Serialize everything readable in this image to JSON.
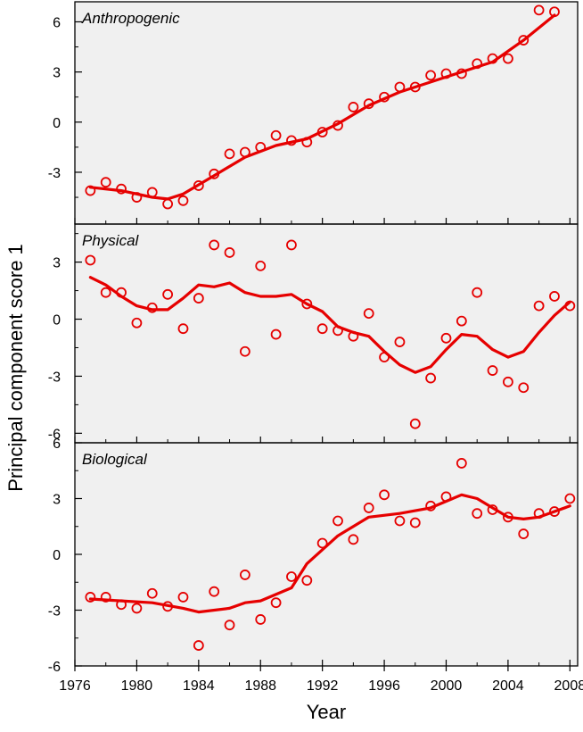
{
  "figure": {
    "ylabel": "Principal component score 1",
    "xlabel": "Year",
    "x_range": [
      1976,
      2008.5
    ],
    "x_ticks": [
      1976,
      1980,
      1984,
      1988,
      1992,
      1996,
      2000,
      2004,
      2008
    ],
    "series_color": "#e60000",
    "plot_background": "#f0f0f0",
    "grid": false
  },
  "chart_data": [
    {
      "type": "scatter",
      "title": "Anthropogenic",
      "ylim": [
        -6.1,
        7.2
      ],
      "y_ticks": [
        -3,
        0,
        3,
        6
      ],
      "points": [
        {
          "x": 1977,
          "y": -4.1
        },
        {
          "x": 1978,
          "y": -3.6
        },
        {
          "x": 1979,
          "y": -4.0
        },
        {
          "x": 1980,
          "y": -4.5
        },
        {
          "x": 1981,
          "y": -4.2
        },
        {
          "x": 1982,
          "y": -4.9
        },
        {
          "x": 1983,
          "y": -4.7
        },
        {
          "x": 1984,
          "y": -3.8
        },
        {
          "x": 1985,
          "y": -3.1
        },
        {
          "x": 1986,
          "y": -1.9
        },
        {
          "x": 1987,
          "y": -1.8
        },
        {
          "x": 1988,
          "y": -1.5
        },
        {
          "x": 1989,
          "y": -0.8
        },
        {
          "x": 1990,
          "y": -1.1
        },
        {
          "x": 1991,
          "y": -1.2
        },
        {
          "x": 1992,
          "y": -0.6
        },
        {
          "x": 1993,
          "y": -0.2
        },
        {
          "x": 1994,
          "y": 0.9
        },
        {
          "x": 1995,
          "y": 1.1
        },
        {
          "x": 1996,
          "y": 1.5
        },
        {
          "x": 1997,
          "y": 2.1
        },
        {
          "x": 1998,
          "y": 2.1
        },
        {
          "x": 1999,
          "y": 2.8
        },
        {
          "x": 2000,
          "y": 2.9
        },
        {
          "x": 2001,
          "y": 2.9
        },
        {
          "x": 2002,
          "y": 3.5
        },
        {
          "x": 2003,
          "y": 3.8
        },
        {
          "x": 2004,
          "y": 3.8
        },
        {
          "x": 2005,
          "y": 4.9
        },
        {
          "x": 2006,
          "y": 6.7
        },
        {
          "x": 2007,
          "y": 6.6
        }
      ],
      "trend": [
        {
          "x": 1977,
          "y": -3.9
        },
        {
          "x": 1979,
          "y": -4.1
        },
        {
          "x": 1981,
          "y": -4.5
        },
        {
          "x": 1982,
          "y": -4.6
        },
        {
          "x": 1983,
          "y": -4.3
        },
        {
          "x": 1985,
          "y": -3.2
        },
        {
          "x": 1987,
          "y": -2.1
        },
        {
          "x": 1989,
          "y": -1.4
        },
        {
          "x": 1991,
          "y": -1.0
        },
        {
          "x": 1993,
          "y": -0.1
        },
        {
          "x": 1995,
          "y": 1.0
        },
        {
          "x": 1997,
          "y": 1.8
        },
        {
          "x": 1999,
          "y": 2.4
        },
        {
          "x": 2001,
          "y": 3.0
        },
        {
          "x": 2003,
          "y": 3.6
        },
        {
          "x": 2005,
          "y": 4.9
        },
        {
          "x": 2007,
          "y": 6.4
        }
      ]
    },
    {
      "type": "scatter",
      "title": "Physical",
      "ylim": [
        -6.5,
        5.0
      ],
      "y_ticks": [
        -6,
        -3,
        0,
        3
      ],
      "points": [
        {
          "x": 1977,
          "y": 3.1
        },
        {
          "x": 1978,
          "y": 1.4
        },
        {
          "x": 1979,
          "y": 1.4
        },
        {
          "x": 1980,
          "y": -0.2
        },
        {
          "x": 1981,
          "y": 0.6
        },
        {
          "x": 1982,
          "y": 1.3
        },
        {
          "x": 1983,
          "y": -0.5
        },
        {
          "x": 1984,
          "y": 1.1
        },
        {
          "x": 1985,
          "y": 3.9
        },
        {
          "x": 1986,
          "y": 3.5
        },
        {
          "x": 1987,
          "y": -1.7
        },
        {
          "x": 1988,
          "y": 2.8
        },
        {
          "x": 1989,
          "y": -0.8
        },
        {
          "x": 1990,
          "y": 3.9
        },
        {
          "x": 1991,
          "y": 0.8
        },
        {
          "x": 1992,
          "y": -0.5
        },
        {
          "x": 1993,
          "y": -0.6
        },
        {
          "x": 1994,
          "y": -0.9
        },
        {
          "x": 1995,
          "y": 0.3
        },
        {
          "x": 1996,
          "y": -2.0
        },
        {
          "x": 1997,
          "y": -1.2
        },
        {
          "x": 1998,
          "y": -5.5
        },
        {
          "x": 1999,
          "y": -3.1
        },
        {
          "x": 2000,
          "y": -1.0
        },
        {
          "x": 2001,
          "y": -0.1
        },
        {
          "x": 2002,
          "y": 1.4
        },
        {
          "x": 2003,
          "y": -2.7
        },
        {
          "x": 2004,
          "y": -3.3
        },
        {
          "x": 2005,
          "y": -3.6
        },
        {
          "x": 2006,
          "y": 0.7
        },
        {
          "x": 2007,
          "y": 1.2
        },
        {
          "x": 2008,
          "y": 0.7
        }
      ],
      "trend": [
        {
          "x": 1977,
          "y": 2.2
        },
        {
          "x": 1978,
          "y": 1.8
        },
        {
          "x": 1979,
          "y": 1.2
        },
        {
          "x": 1980,
          "y": 0.7
        },
        {
          "x": 1981,
          "y": 0.5
        },
        {
          "x": 1982,
          "y": 0.5
        },
        {
          "x": 1983,
          "y": 1.1
        },
        {
          "x": 1984,
          "y": 1.8
        },
        {
          "x": 1985,
          "y": 1.7
        },
        {
          "x": 1986,
          "y": 1.9
        },
        {
          "x": 1987,
          "y": 1.4
        },
        {
          "x": 1988,
          "y": 1.2
        },
        {
          "x": 1989,
          "y": 1.2
        },
        {
          "x": 1990,
          "y": 1.3
        },
        {
          "x": 1991,
          "y": 0.8
        },
        {
          "x": 1992,
          "y": 0.4
        },
        {
          "x": 1993,
          "y": -0.4
        },
        {
          "x": 1994,
          "y": -0.7
        },
        {
          "x": 1995,
          "y": -0.9
        },
        {
          "x": 1996,
          "y": -1.7
        },
        {
          "x": 1997,
          "y": -2.4
        },
        {
          "x": 1998,
          "y": -2.8
        },
        {
          "x": 1999,
          "y": -2.5
        },
        {
          "x": 2000,
          "y": -1.6
        },
        {
          "x": 2001,
          "y": -0.8
        },
        {
          "x": 2002,
          "y": -0.9
        },
        {
          "x": 2003,
          "y": -1.6
        },
        {
          "x": 2004,
          "y": -2.0
        },
        {
          "x": 2005,
          "y": -1.7
        },
        {
          "x": 2006,
          "y": -0.7
        },
        {
          "x": 2007,
          "y": 0.2
        },
        {
          "x": 2008,
          "y": 0.9
        }
      ]
    },
    {
      "type": "scatter",
      "title": "Biological",
      "ylim": [
        -6.0,
        6.0
      ],
      "y_ticks": [
        -6,
        -3,
        0,
        3,
        6
      ],
      "points": [
        {
          "x": 1977,
          "y": -2.3
        },
        {
          "x": 1978,
          "y": -2.3
        },
        {
          "x": 1979,
          "y": -2.7
        },
        {
          "x": 1980,
          "y": -2.9
        },
        {
          "x": 1981,
          "y": -2.1
        },
        {
          "x": 1982,
          "y": -2.8
        },
        {
          "x": 1983,
          "y": -2.3
        },
        {
          "x": 1984,
          "y": -4.9
        },
        {
          "x": 1985,
          "y": -2.0
        },
        {
          "x": 1986,
          "y": -3.8
        },
        {
          "x": 1987,
          "y": -1.1
        },
        {
          "x": 1988,
          "y": -3.5
        },
        {
          "x": 1989,
          "y": -2.6
        },
        {
          "x": 1990,
          "y": -1.2
        },
        {
          "x": 1991,
          "y": -1.4
        },
        {
          "x": 1992,
          "y": 0.6
        },
        {
          "x": 1993,
          "y": 1.8
        },
        {
          "x": 1994,
          "y": 0.8
        },
        {
          "x": 1995,
          "y": 2.5
        },
        {
          "x": 1996,
          "y": 3.2
        },
        {
          "x": 1997,
          "y": 1.8
        },
        {
          "x": 1998,
          "y": 1.7
        },
        {
          "x": 1999,
          "y": 2.6
        },
        {
          "x": 2000,
          "y": 3.1
        },
        {
          "x": 2001,
          "y": 4.9
        },
        {
          "x": 2002,
          "y": 2.2
        },
        {
          "x": 2003,
          "y": 2.4
        },
        {
          "x": 2004,
          "y": 2.0
        },
        {
          "x": 2005,
          "y": 1.1
        },
        {
          "x": 2006,
          "y": 2.2
        },
        {
          "x": 2007,
          "y": 2.3
        },
        {
          "x": 2008,
          "y": 3.0
        }
      ],
      "trend": [
        {
          "x": 1977,
          "y": -2.4
        },
        {
          "x": 1979,
          "y": -2.5
        },
        {
          "x": 1981,
          "y": -2.6
        },
        {
          "x": 1983,
          "y": -2.9
        },
        {
          "x": 1984,
          "y": -3.1
        },
        {
          "x": 1986,
          "y": -2.9
        },
        {
          "x": 1987,
          "y": -2.6
        },
        {
          "x": 1988,
          "y": -2.5
        },
        {
          "x": 1990,
          "y": -1.8
        },
        {
          "x": 1991,
          "y": -0.5
        },
        {
          "x": 1993,
          "y": 1.0
        },
        {
          "x": 1995,
          "y": 2.0
        },
        {
          "x": 1997,
          "y": 2.2
        },
        {
          "x": 1999,
          "y": 2.5
        },
        {
          "x": 2001,
          "y": 3.2
        },
        {
          "x": 2002,
          "y": 3.0
        },
        {
          "x": 2004,
          "y": 2.0
        },
        {
          "x": 2005,
          "y": 1.9
        },
        {
          "x": 2006,
          "y": 2.0
        },
        {
          "x": 2008,
          "y": 2.6
        }
      ]
    }
  ]
}
